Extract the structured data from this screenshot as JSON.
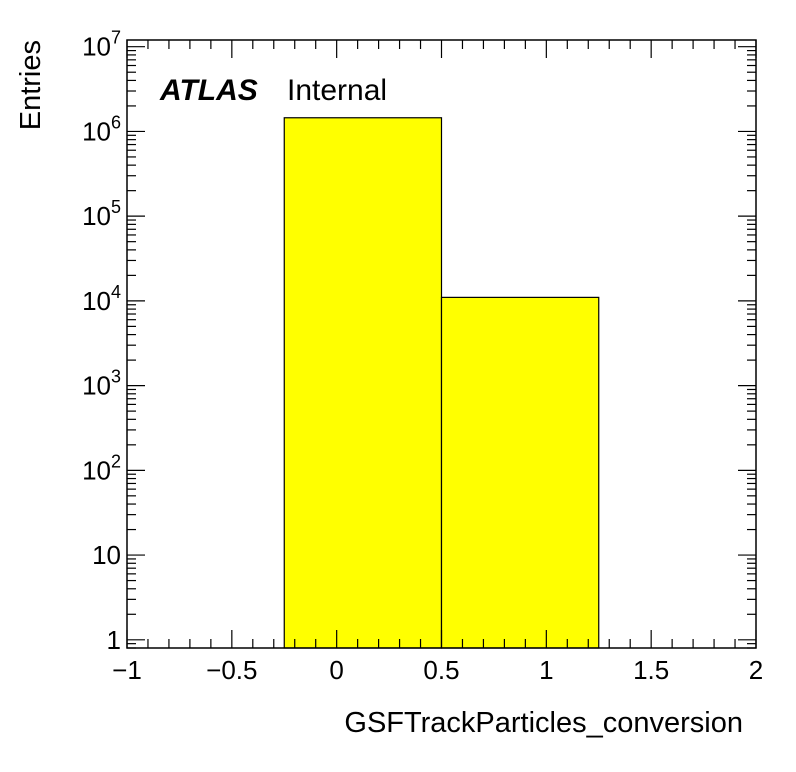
{
  "chart_data": {
    "type": "bar",
    "style": "histogram",
    "xlabel": "GSFTrackParticles_conversion",
    "ylabel": "Entries",
    "xlim": [
      -1,
      2
    ],
    "ylim": [
      0.8,
      12000000
    ],
    "yscale": "log",
    "grid": false,
    "bins": [
      {
        "low": -0.25,
        "high": 0.5,
        "value": 1450000
      },
      {
        "low": 0.5,
        "high": 1.25,
        "value": 11000
      }
    ],
    "fill_color": "#ffff00",
    "edge_color": "#000000",
    "x_ticks": [
      {
        "value": -1,
        "label": "−1"
      },
      {
        "value": -0.5,
        "label": "−0.5"
      },
      {
        "value": 0,
        "label": "0"
      },
      {
        "value": 0.5,
        "label": "0.5"
      },
      {
        "value": 1,
        "label": "1"
      },
      {
        "value": 1.5,
        "label": "1.5"
      },
      {
        "value": 2,
        "label": "2"
      }
    ],
    "y_ticks": [
      {
        "value": 1,
        "base": "1",
        "exp": ""
      },
      {
        "value": 10,
        "base": "10",
        "exp": ""
      },
      {
        "value": 100,
        "base": "10",
        "exp": "2"
      },
      {
        "value": 1000,
        "base": "10",
        "exp": "3"
      },
      {
        "value": 10000,
        "base": "10",
        "exp": "4"
      },
      {
        "value": 100000,
        "base": "10",
        "exp": "5"
      },
      {
        "value": 1000000,
        "base": "10",
        "exp": "6"
      },
      {
        "value": 10000000,
        "base": "10",
        "exp": "7"
      }
    ]
  },
  "label": {
    "experiment": "ATLAS",
    "status": "Internal"
  }
}
